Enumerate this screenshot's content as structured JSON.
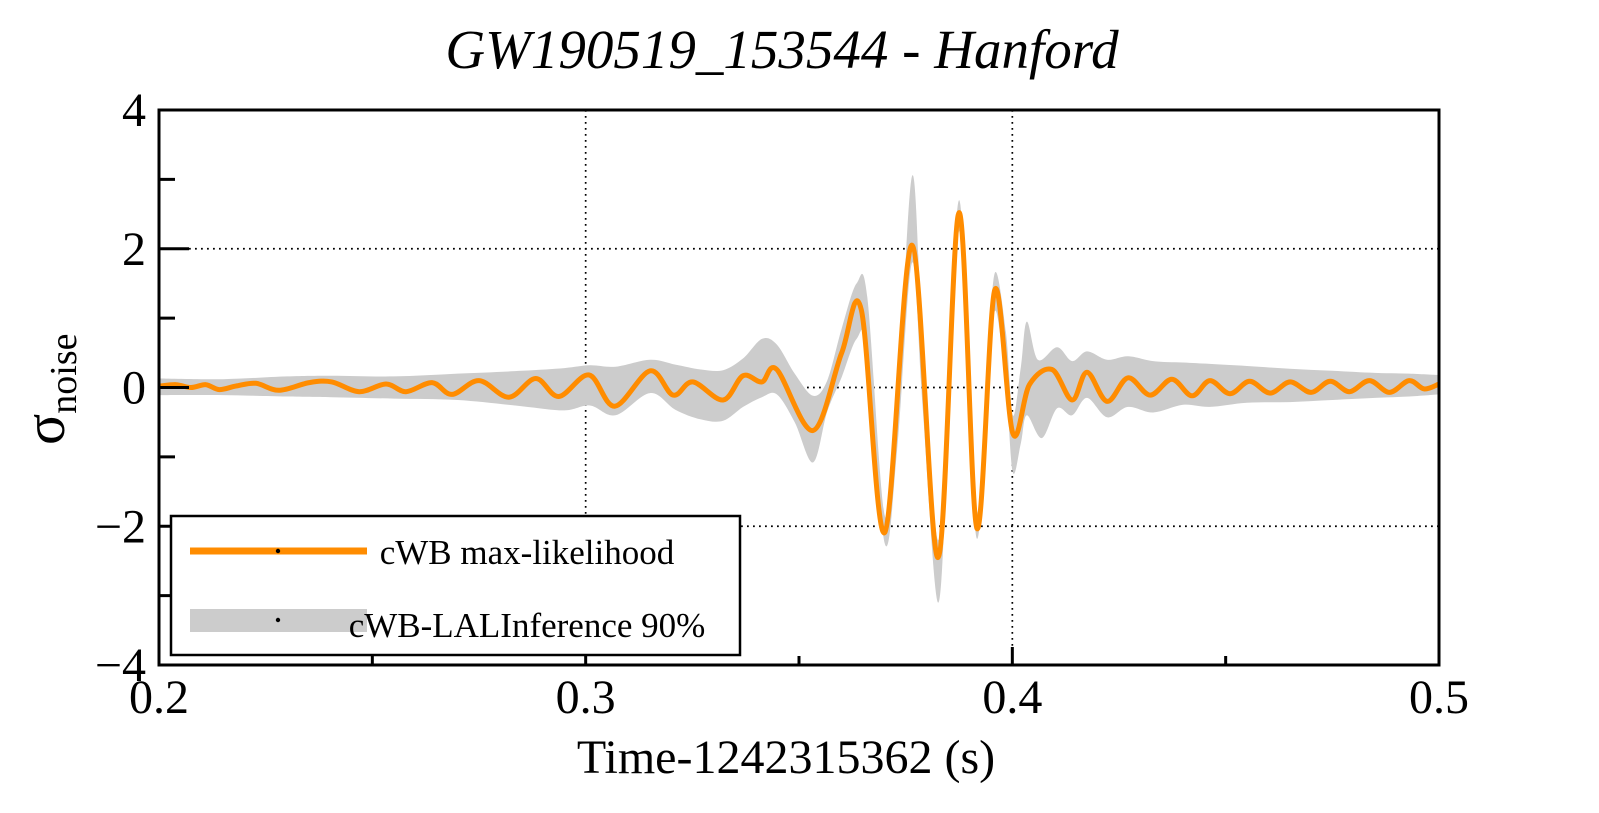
{
  "title": "GW190519_153544 - Hanford",
  "axes": {
    "xlabel": "Time-1242315362 (s)",
    "ylabel_symbol": "σ",
    "ylabel_subscript": "noise",
    "xlim": [
      0.2,
      0.5
    ],
    "ylim": [
      -4,
      4
    ],
    "x_major_ticks": [
      0.2,
      0.3,
      0.4,
      0.5
    ],
    "x_tick_labels": [
      "0.2",
      "0.3",
      "0.4",
      "0.5"
    ],
    "x_minor_ticks": [
      0.25,
      0.35,
      0.45
    ],
    "y_major_ticks": [
      -4,
      -2,
      0,
      2,
      4
    ],
    "y_tick_labels": [
      "−4",
      "−2",
      "0",
      "2",
      "4"
    ],
    "y_minor_ticks": [
      -3,
      -1,
      1,
      3
    ],
    "x_gridlines": [
      0.3,
      0.4
    ],
    "y_gridlines": [
      -2,
      0,
      2
    ]
  },
  "legend": {
    "items": [
      {
        "label": "cWB max-likelihood",
        "type": "line",
        "color": "#ff8c00"
      },
      {
        "label": "cWB-LALInference 90%",
        "type": "band",
        "color": "#cccccc"
      }
    ]
  },
  "colors": {
    "line": "#ff8c00",
    "band": "#cccccc",
    "frame": "#000000",
    "background": "#ffffff"
  },
  "chart_data": {
    "type": "line",
    "title": "GW190519_153544 - Hanford",
    "xlabel": "Time-1242315362 (s)",
    "ylabel": "sigma_noise",
    "xlim": [
      0.2,
      0.5
    ],
    "ylim": [
      -4,
      4
    ],
    "grid": "dotted gridlines at x=0.3,0.4 and y=-2,0,2",
    "legend_position": "bottom-left",
    "series": [
      {
        "name": "cWB max-likelihood",
        "type": "line",
        "color": "#ff8c00",
        "points": [
          [
            0.2,
            0.02
          ],
          [
            0.204,
            0.04
          ],
          [
            0.2075,
            0.0
          ],
          [
            0.211,
            0.04
          ],
          [
            0.2141,
            -0.03
          ],
          [
            0.218,
            0.02
          ],
          [
            0.2227,
            0.06
          ],
          [
            0.2281,
            -0.04
          ],
          [
            0.2352,
            0.07
          ],
          [
            0.2405,
            0.08
          ],
          [
            0.2469,
            -0.06
          ],
          [
            0.2532,
            0.05
          ],
          [
            0.2579,
            -0.06
          ],
          [
            0.264,
            0.07
          ],
          [
            0.2687,
            -0.1
          ],
          [
            0.275,
            0.1
          ],
          [
            0.282,
            -0.14
          ],
          [
            0.2883,
            0.13
          ],
          [
            0.2937,
            -0.13
          ],
          [
            0.3008,
            0.18
          ],
          [
            0.3068,
            -0.27
          ],
          [
            0.3151,
            0.24
          ],
          [
            0.3205,
            -0.11
          ],
          [
            0.3251,
            0.08
          ],
          [
            0.3322,
            -0.18
          ],
          [
            0.3369,
            0.17
          ],
          [
            0.3413,
            0.08
          ],
          [
            0.3448,
            0.26
          ],
          [
            0.3533,
            -0.62
          ],
          [
            0.36,
            0.5
          ],
          [
            0.3646,
            1.12
          ],
          [
            0.3701,
            -2.09
          ],
          [
            0.3765,
            2.05
          ],
          [
            0.3826,
            -2.45
          ],
          [
            0.3875,
            2.52
          ],
          [
            0.3917,
            -2.03
          ],
          [
            0.3959,
            1.41
          ],
          [
            0.4001,
            -0.66
          ],
          [
            0.404,
            0.04
          ],
          [
            0.4093,
            0.26
          ],
          [
            0.414,
            -0.18
          ],
          [
            0.4175,
            0.22
          ],
          [
            0.4222,
            -0.2
          ],
          [
            0.4271,
            0.14
          ],
          [
            0.4323,
            -0.11
          ],
          [
            0.4374,
            0.12
          ],
          [
            0.4421,
            -0.12
          ],
          [
            0.4463,
            0.1
          ],
          [
            0.451,
            -0.09
          ],
          [
            0.4556,
            0.09
          ],
          [
            0.4604,
            -0.08
          ],
          [
            0.4651,
            0.08
          ],
          [
            0.47,
            -0.07
          ],
          [
            0.4745,
            0.09
          ],
          [
            0.479,
            -0.06
          ],
          [
            0.4837,
            0.1
          ],
          [
            0.4884,
            -0.07
          ],
          [
            0.493,
            0.1
          ],
          [
            0.4965,
            -0.02
          ],
          [
            0.5,
            0.05
          ]
        ]
      },
      {
        "name": "cWB-LALInference 90%",
        "type": "band",
        "color": "#cccccc",
        "upper": [
          [
            0.2,
            0.13
          ],
          [
            0.215,
            0.12
          ],
          [
            0.23,
            0.16
          ],
          [
            0.2405,
            0.17
          ],
          [
            0.255,
            0.16
          ],
          [
            0.27,
            0.2
          ],
          [
            0.285,
            0.24
          ],
          [
            0.295,
            0.28
          ],
          [
            0.301,
            0.32
          ],
          [
            0.307,
            0.3
          ],
          [
            0.3151,
            0.4
          ],
          [
            0.321,
            0.33
          ],
          [
            0.327,
            0.26
          ],
          [
            0.3322,
            0.25
          ],
          [
            0.3369,
            0.42
          ],
          [
            0.3413,
            0.7
          ],
          [
            0.3448,
            0.62
          ],
          [
            0.349,
            0.2
          ],
          [
            0.3533,
            -0.12
          ],
          [
            0.3566,
            0.1
          ],
          [
            0.36,
            0.85
          ],
          [
            0.3635,
            1.5
          ],
          [
            0.366,
            1.3
          ],
          [
            0.3701,
            -1.85
          ],
          [
            0.373,
            -0.4
          ],
          [
            0.3765,
            3.05
          ],
          [
            0.379,
            0.6
          ],
          [
            0.3826,
            -2.2
          ],
          [
            0.385,
            0.4
          ],
          [
            0.3875,
            2.7
          ],
          [
            0.3896,
            0.6
          ],
          [
            0.3917,
            -1.8
          ],
          [
            0.394,
            0.1
          ],
          [
            0.3959,
            1.65
          ],
          [
            0.3985,
            0.8
          ],
          [
            0.4001,
            -0.4
          ],
          [
            0.402,
            0.3
          ],
          [
            0.4034,
            0.95
          ],
          [
            0.406,
            0.4
          ],
          [
            0.4105,
            0.58
          ],
          [
            0.414,
            0.38
          ],
          [
            0.4175,
            0.52
          ],
          [
            0.4222,
            0.4
          ],
          [
            0.4271,
            0.45
          ],
          [
            0.433,
            0.38
          ],
          [
            0.44,
            0.36
          ],
          [
            0.4463,
            0.34
          ],
          [
            0.455,
            0.31
          ],
          [
            0.465,
            0.27
          ],
          [
            0.475,
            0.24
          ],
          [
            0.485,
            0.21
          ],
          [
            0.493,
            0.2
          ],
          [
            0.5,
            0.18
          ]
        ],
        "lower": [
          [
            0.2,
            -0.11
          ],
          [
            0.215,
            -0.11
          ],
          [
            0.23,
            -0.13
          ],
          [
            0.2405,
            -0.14
          ],
          [
            0.255,
            -0.16
          ],
          [
            0.27,
            -0.18
          ],
          [
            0.285,
            -0.27
          ],
          [
            0.295,
            -0.33
          ],
          [
            0.301,
            -0.26
          ],
          [
            0.307,
            -0.4
          ],
          [
            0.3151,
            -0.08
          ],
          [
            0.321,
            -0.32
          ],
          [
            0.327,
            -0.46
          ],
          [
            0.3322,
            -0.48
          ],
          [
            0.3369,
            -0.28
          ],
          [
            0.3413,
            -0.14
          ],
          [
            0.3448,
            -0.1
          ],
          [
            0.349,
            -0.5
          ],
          [
            0.3533,
            -1.08
          ],
          [
            0.3566,
            -0.35
          ],
          [
            0.36,
            0.15
          ],
          [
            0.3635,
            0.7
          ],
          [
            0.366,
            0.55
          ],
          [
            0.3701,
            -2.25
          ],
          [
            0.373,
            -0.9
          ],
          [
            0.3765,
            1.8
          ],
          [
            0.379,
            -0.3
          ],
          [
            0.3826,
            -3.1
          ],
          [
            0.385,
            -0.6
          ],
          [
            0.3875,
            2.25
          ],
          [
            0.3896,
            -0.2
          ],
          [
            0.3917,
            -2.18
          ],
          [
            0.394,
            -0.6
          ],
          [
            0.3959,
            1.1
          ],
          [
            0.3985,
            0.0
          ],
          [
            0.4001,
            -1.22
          ],
          [
            0.402,
            -0.8
          ],
          [
            0.4034,
            -0.4
          ],
          [
            0.4069,
            -0.73
          ],
          [
            0.4105,
            -0.3
          ],
          [
            0.414,
            -0.4
          ],
          [
            0.4175,
            -0.15
          ],
          [
            0.4222,
            -0.43
          ],
          [
            0.4271,
            -0.28
          ],
          [
            0.433,
            -0.36
          ],
          [
            0.44,
            -0.25
          ],
          [
            0.4463,
            -0.28
          ],
          [
            0.455,
            -0.22
          ],
          [
            0.465,
            -0.21
          ],
          [
            0.475,
            -0.18
          ],
          [
            0.485,
            -0.15
          ],
          [
            0.493,
            -0.13
          ],
          [
            0.5,
            -0.1
          ]
        ]
      }
    ]
  }
}
